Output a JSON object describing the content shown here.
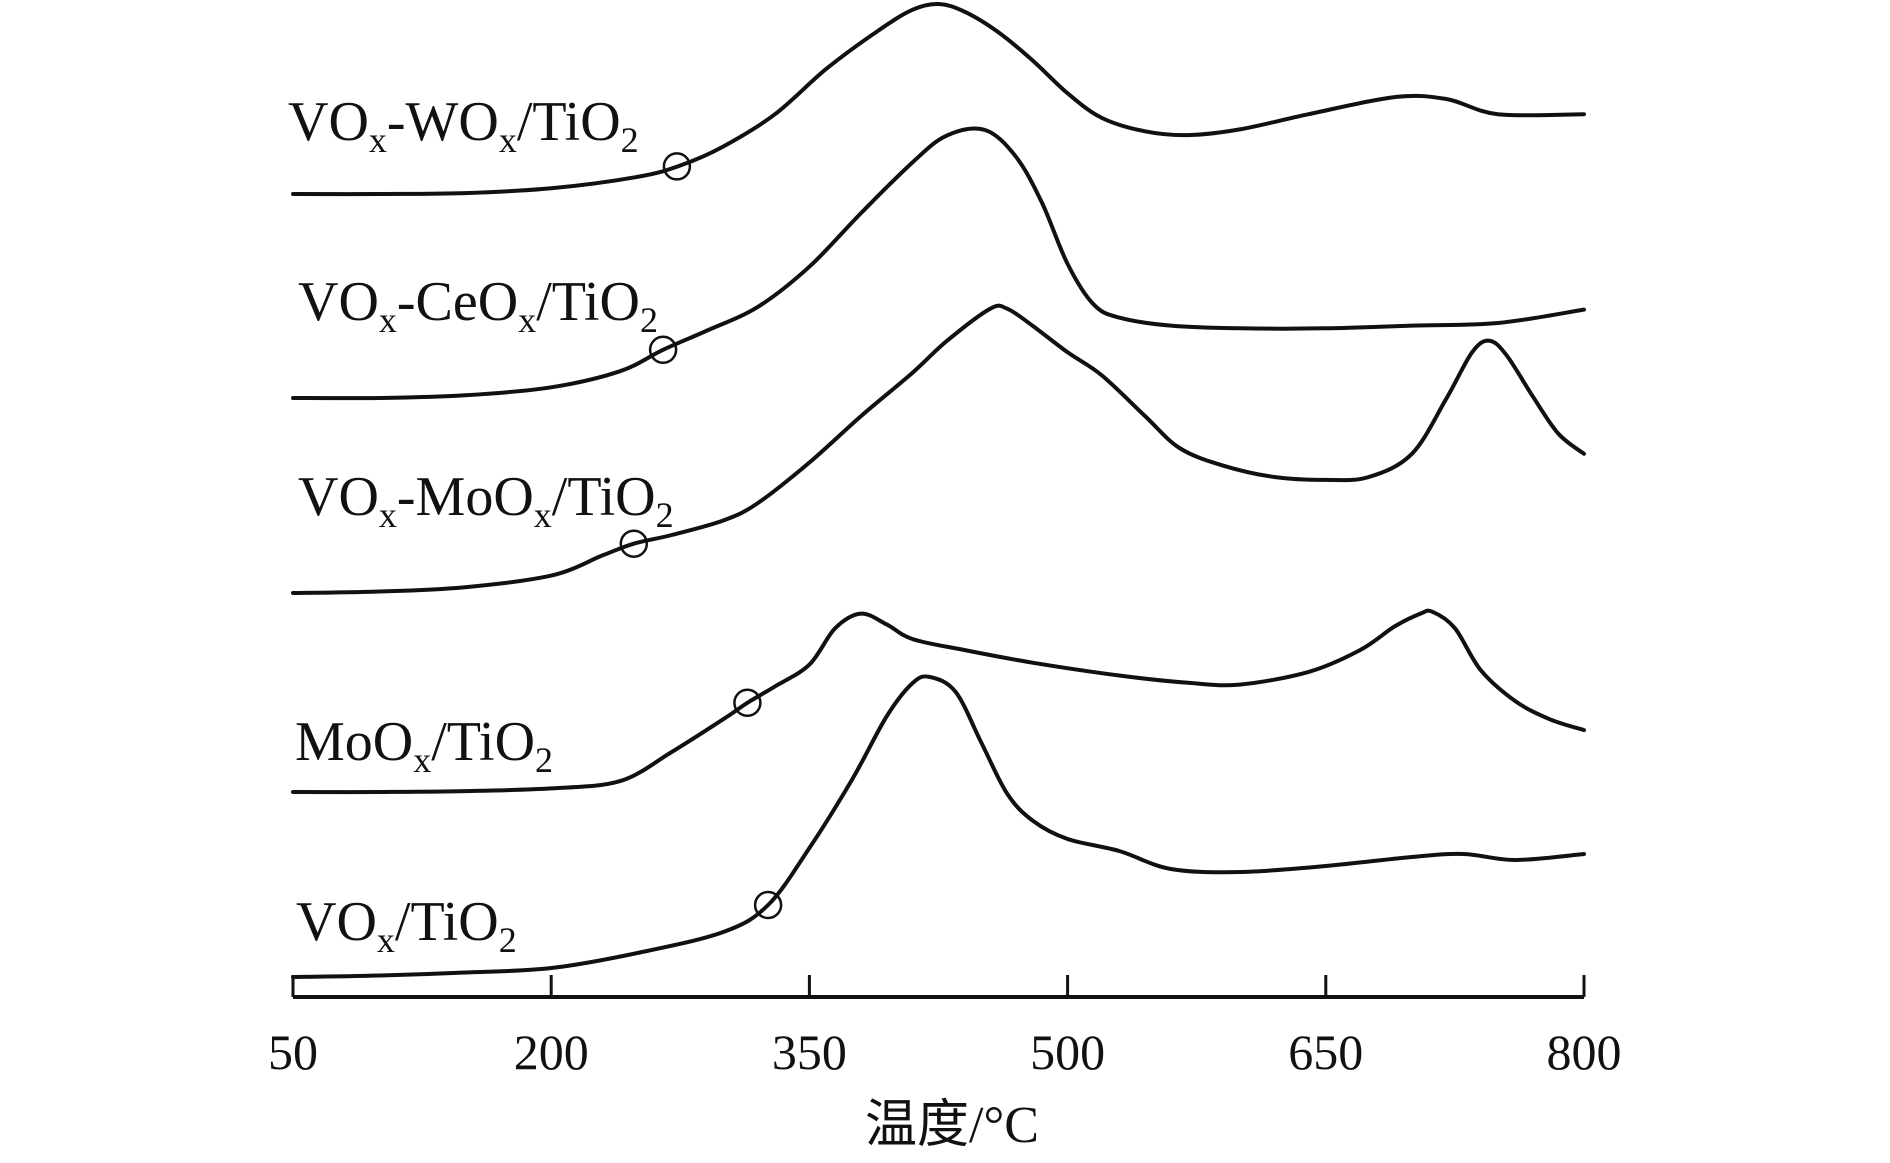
{
  "chart_data": {
    "type": "line",
    "title": "",
    "xlabel": "温度/°C",
    "ylabel": "",
    "xlim": [
      50,
      800
    ],
    "xticks": [
      50,
      200,
      350,
      500,
      650,
      800
    ],
    "grid": false,
    "y_units": "arbitrary (stacked offset curves)",
    "series": [
      {
        "name": "VOx-WOx/TiO2",
        "label_parts": [
          [
            "VO",
            ""
          ],
          [
            "x",
            "sub"
          ],
          [
            "-WO",
            ""
          ],
          [
            "x",
            "sub"
          ],
          [
            "/TiO",
            ""
          ],
          [
            "2",
            "sub"
          ]
        ],
        "marker_x": 273,
        "points": [
          [
            50,
            0.0
          ],
          [
            100,
            0.0
          ],
          [
            150,
            0.005
          ],
          [
            200,
            0.03
          ],
          [
            250,
            0.09
          ],
          [
            275,
            0.15
          ],
          [
            300,
            0.25
          ],
          [
            330,
            0.42
          ],
          [
            360,
            0.66
          ],
          [
            390,
            0.86
          ],
          [
            410,
            0.97
          ],
          [
            425,
            1.0
          ],
          [
            440,
            0.96
          ],
          [
            460,
            0.85
          ],
          [
            480,
            0.7
          ],
          [
            500,
            0.53
          ],
          [
            520,
            0.4
          ],
          [
            545,
            0.33
          ],
          [
            570,
            0.31
          ],
          [
            600,
            0.34
          ],
          [
            640,
            0.42
          ],
          [
            690,
            0.51
          ],
          [
            720,
            0.5
          ],
          [
            750,
            0.42
          ],
          [
            800,
            0.42
          ]
        ]
      },
      {
        "name": "VOx-CeOx/TiO2",
        "label_parts": [
          [
            "VO",
            ""
          ],
          [
            "x",
            "sub"
          ],
          [
            "-CeO",
            ""
          ],
          [
            "x",
            "sub"
          ],
          [
            "/TiO",
            ""
          ],
          [
            "2",
            "sub"
          ]
        ],
        "marker_x": 265,
        "points": [
          [
            50,
            0.0
          ],
          [
            100,
            0.0
          ],
          [
            150,
            0.01
          ],
          [
            200,
            0.04
          ],
          [
            240,
            0.1
          ],
          [
            265,
            0.18
          ],
          [
            290,
            0.25
          ],
          [
            320,
            0.34
          ],
          [
            350,
            0.49
          ],
          [
            380,
            0.69
          ],
          [
            410,
            0.88
          ],
          [
            430,
            0.98
          ],
          [
            452,
            1.0
          ],
          [
            470,
            0.9
          ],
          [
            485,
            0.73
          ],
          [
            500,
            0.5
          ],
          [
            515,
            0.35
          ],
          [
            530,
            0.3
          ],
          [
            560,
            0.27
          ],
          [
            600,
            0.26
          ],
          [
            650,
            0.26
          ],
          [
            700,
            0.27
          ],
          [
            750,
            0.28
          ],
          [
            800,
            0.33
          ]
        ]
      },
      {
        "name": "VOx-MoOx/TiO2",
        "label_parts": [
          [
            "VO",
            ""
          ],
          [
            "x",
            "sub"
          ],
          [
            "-MoO",
            ""
          ],
          [
            "x",
            "sub"
          ],
          [
            "/TiO",
            ""
          ],
          [
            "2",
            "sub"
          ]
        ],
        "marker_x": 248,
        "points": [
          [
            50,
            0.0
          ],
          [
            100,
            0.005
          ],
          [
            150,
            0.02
          ],
          [
            200,
            0.06
          ],
          [
            230,
            0.13
          ],
          [
            248,
            0.17
          ],
          [
            270,
            0.2
          ],
          [
            300,
            0.25
          ],
          [
            320,
            0.31
          ],
          [
            350,
            0.45
          ],
          [
            380,
            0.61
          ],
          [
            410,
            0.76
          ],
          [
            430,
            0.87
          ],
          [
            455,
            0.98
          ],
          [
            465,
            0.98
          ],
          [
            480,
            0.92
          ],
          [
            500,
            0.83
          ],
          [
            520,
            0.75
          ],
          [
            545,
            0.61
          ],
          [
            565,
            0.5
          ],
          [
            590,
            0.44
          ],
          [
            620,
            0.4
          ],
          [
            650,
            0.39
          ],
          [
            675,
            0.4
          ],
          [
            700,
            0.48
          ],
          [
            720,
            0.67
          ],
          [
            735,
            0.83
          ],
          [
            745,
            0.87
          ],
          [
            755,
            0.82
          ],
          [
            770,
            0.68
          ],
          [
            785,
            0.55
          ],
          [
            800,
            0.48
          ]
        ]
      },
      {
        "name": "MoOx/TiO2",
        "label_parts": [
          [
            "MoO",
            ""
          ],
          [
            "x",
            "sub"
          ],
          [
            "/TiO",
            ""
          ],
          [
            "2",
            "sub"
          ]
        ],
        "marker_x": 314,
        "points": [
          [
            50,
            0.0
          ],
          [
            100,
            0.0
          ],
          [
            150,
            0.005
          ],
          [
            200,
            0.02
          ],
          [
            240,
            0.06
          ],
          [
            270,
            0.22
          ],
          [
            300,
            0.4
          ],
          [
            314,
            0.49
          ],
          [
            330,
            0.58
          ],
          [
            350,
            0.7
          ],
          [
            365,
            0.9
          ],
          [
            380,
            0.98
          ],
          [
            395,
            0.92
          ],
          [
            410,
            0.84
          ],
          [
            440,
            0.78
          ],
          [
            480,
            0.71
          ],
          [
            530,
            0.64
          ],
          [
            570,
            0.6
          ],
          [
            600,
            0.59
          ],
          [
            640,
            0.66
          ],
          [
            670,
            0.78
          ],
          [
            690,
            0.91
          ],
          [
            705,
            0.98
          ],
          [
            712,
            0.99
          ],
          [
            725,
            0.9
          ],
          [
            740,
            0.67
          ],
          [
            760,
            0.5
          ],
          [
            780,
            0.4
          ],
          [
            800,
            0.34
          ]
        ]
      },
      {
        "name": "VOx/TiO2",
        "label_parts": [
          [
            "VO",
            ""
          ],
          [
            "x",
            "sub"
          ],
          [
            "/TiO",
            ""
          ],
          [
            "2",
            "sub"
          ]
        ],
        "marker_x": 326,
        "points": [
          [
            50,
            0.0
          ],
          [
            100,
            0.005
          ],
          [
            150,
            0.015
          ],
          [
            200,
            0.03
          ],
          [
            250,
            0.08
          ],
          [
            300,
            0.15
          ],
          [
            326,
            0.24
          ],
          [
            350,
            0.43
          ],
          [
            375,
            0.66
          ],
          [
            395,
            0.87
          ],
          [
            410,
            0.98
          ],
          [
            420,
            1.0
          ],
          [
            435,
            0.95
          ],
          [
            450,
            0.78
          ],
          [
            465,
            0.61
          ],
          [
            480,
            0.52
          ],
          [
            500,
            0.46
          ],
          [
            530,
            0.42
          ],
          [
            560,
            0.36
          ],
          [
            600,
            0.35
          ],
          [
            650,
            0.37
          ],
          [
            700,
            0.4
          ],
          [
            730,
            0.41
          ],
          [
            760,
            0.39
          ],
          [
            800,
            0.41
          ]
        ]
      }
    ]
  }
}
